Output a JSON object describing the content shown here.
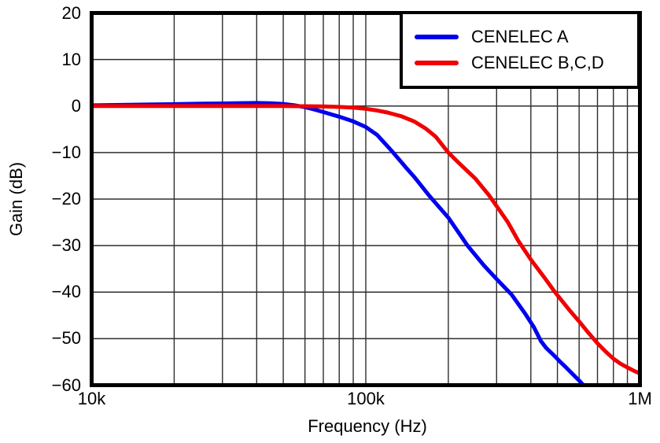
{
  "chart_data": {
    "type": "line",
    "title": "",
    "xlabel": "Frequency (Hz)",
    "ylabel": "Gain (dB)",
    "x_scale": "log",
    "x_range": [
      10000,
      1000000
    ],
    "ylim": [
      -60,
      20
    ],
    "grid": true,
    "legend_position": "top-right",
    "x_major_ticks": [
      {
        "value": 10000,
        "label": "10k"
      },
      {
        "value": 100000,
        "label": "100k"
      },
      {
        "value": 1000000,
        "label": "1M"
      }
    ],
    "x_minor_gridlines": [
      20000,
      30000,
      40000,
      50000,
      60000,
      70000,
      80000,
      90000,
      100000,
      200000,
      300000,
      400000,
      500000,
      600000,
      700000,
      800000,
      900000
    ],
    "y_ticks": [
      {
        "value": 20,
        "label": "20"
      },
      {
        "value": 10,
        "label": "10"
      },
      {
        "value": 0,
        "label": "0"
      },
      {
        "value": -10,
        "label": "−10"
      },
      {
        "value": -20,
        "label": "−20"
      },
      {
        "value": -30,
        "label": "−30"
      },
      {
        "value": -40,
        "label": "−40"
      },
      {
        "value": -50,
        "label": "−50"
      },
      {
        "value": -60,
        "label": "−60"
      }
    ],
    "y_gridlines": [
      10,
      0,
      -10,
      -20,
      -30,
      -40,
      -50
    ],
    "frame_color": "#000000",
    "grid_color": "#2e2e2e",
    "series": [
      {
        "name": "CENELEC A",
        "color": "#0000F0",
        "points": [
          [
            10000,
            0.15
          ],
          [
            15000,
            0.3
          ],
          [
            20000,
            0.4
          ],
          [
            25000,
            0.5
          ],
          [
            30000,
            0.55
          ],
          [
            35000,
            0.62
          ],
          [
            40000,
            0.65
          ],
          [
            45000,
            0.6
          ],
          [
            50000,
            0.45
          ],
          [
            55000,
            0.15
          ],
          [
            60000,
            -0.25
          ],
          [
            65000,
            -0.75
          ],
          [
            70000,
            -1.3
          ],
          [
            80000,
            -2.3
          ],
          [
            90000,
            -3.3
          ],
          [
            100000,
            -4.5
          ],
          [
            110000,
            -6.2
          ],
          [
            125000,
            -9.8
          ],
          [
            140000,
            -13.2
          ],
          [
            150000,
            -15.2
          ],
          [
            170000,
            -19.2
          ],
          [
            200000,
            -24.0
          ],
          [
            235000,
            -30.0
          ],
          [
            270000,
            -34.3
          ],
          [
            300000,
            -37.2
          ],
          [
            340000,
            -40.5
          ],
          [
            380000,
            -44.5
          ],
          [
            410000,
            -47.5
          ],
          [
            435000,
            -50.5
          ],
          [
            455000,
            -52.0
          ],
          [
            480000,
            -53.3
          ],
          [
            510000,
            -54.9
          ],
          [
            540000,
            -56.3
          ],
          [
            570000,
            -57.7
          ],
          [
            600000,
            -59.0
          ],
          [
            622000,
            -60.0
          ]
        ]
      },
      {
        "name": "CENELEC B,C,D",
        "color": "#F00000",
        "points": [
          [
            10000,
            0.0
          ],
          [
            20000,
            0.0
          ],
          [
            30000,
            0.0
          ],
          [
            40000,
            0.0
          ],
          [
            50000,
            0.0
          ],
          [
            60000,
            -0.05
          ],
          [
            70000,
            -0.1
          ],
          [
            80000,
            -0.2
          ],
          [
            90000,
            -0.35
          ],
          [
            100000,
            -0.6
          ],
          [
            110000,
            -0.95
          ],
          [
            120000,
            -1.4
          ],
          [
            135000,
            -2.2
          ],
          [
            150000,
            -3.3
          ],
          [
            165000,
            -4.8
          ],
          [
            180000,
            -6.6
          ],
          [
            200000,
            -10.0
          ],
          [
            220000,
            -12.4
          ],
          [
            250000,
            -15.5
          ],
          [
            280000,
            -19.0
          ],
          [
            300000,
            -21.5
          ],
          [
            330000,
            -25.0
          ],
          [
            360000,
            -29.0
          ],
          [
            400000,
            -33.0
          ],
          [
            450000,
            -37.0
          ],
          [
            490000,
            -40.0
          ],
          [
            550000,
            -43.7
          ],
          [
            600000,
            -46.3
          ],
          [
            650000,
            -48.8
          ],
          [
            700000,
            -51.0
          ],
          [
            750000,
            -52.8
          ],
          [
            800000,
            -54.3
          ],
          [
            850000,
            -55.4
          ],
          [
            900000,
            -56.2
          ],
          [
            950000,
            -56.9
          ],
          [
            1000000,
            -57.5
          ]
        ]
      }
    ]
  }
}
